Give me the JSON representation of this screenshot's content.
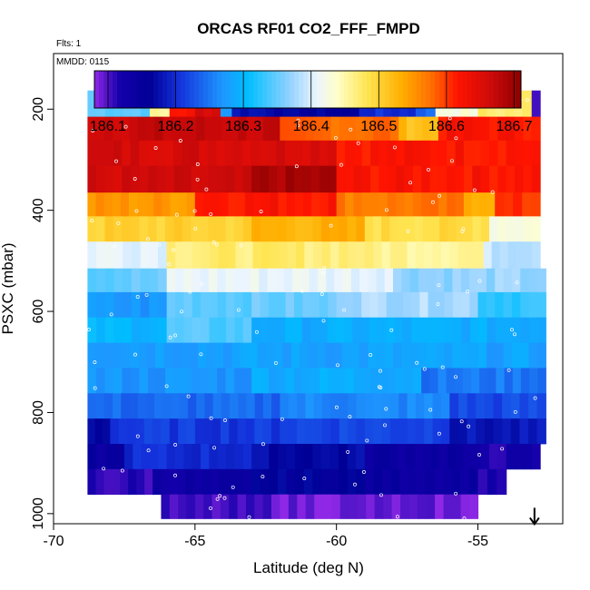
{
  "chart_data": {
    "type": "heatmap",
    "title": "ORCAS RF01 CO2_FFF_FMPD",
    "flights_note": "Flts: 1",
    "date_note": "MMDD: 0115",
    "xlabel": "Latitude (deg N)",
    "ylabel": "PSXC (mbar)",
    "xlim": [
      -70,
      -52
    ],
    "ylim": [
      1020,
      90
    ],
    "x_ticks": [
      -70,
      -65,
      -60,
      -55
    ],
    "x_tick_labels": [
      "-70",
      "-65",
      "-60",
      "-55"
    ],
    "y_ticks": [
      200,
      400,
      600,
      800,
      1000
    ],
    "y_tick_labels": [
      "200",
      "400",
      "600",
      "800",
      "1000"
    ],
    "colorbar": {
      "min": 186.08,
      "max": 186.71,
      "ticks": [
        186.1,
        186.2,
        186.3,
        186.4,
        186.5,
        186.6,
        186.7
      ],
      "tick_labels": [
        "186.1",
        "186.2",
        "186.3",
        "186.4",
        "186.5",
        "186.6",
        "186.7"
      ]
    },
    "grid": false,
    "marker": {
      "symbol": "down-arrow",
      "lat": -53.0,
      "pressure": 1010
    },
    "bands": [
      {
        "p_top": 163,
        "p_bot": 215,
        "lat_start": -68.8,
        "lat_end": -52.8,
        "segments": [
          {
            "lat_to": -66.6,
            "value": 186.35
          },
          {
            "lat_to": -65.9,
            "value": 186.45
          },
          {
            "lat_to": -65.0,
            "value": 186.62
          },
          {
            "lat_to": -64.1,
            "value": 186.66
          },
          {
            "lat_to": -63.7,
            "value": 186.28
          },
          {
            "lat_to": -62.2,
            "value": 186.18
          },
          {
            "lat_to": -59.2,
            "value": 186.16
          },
          {
            "lat_to": -57.2,
            "value": 186.2
          },
          {
            "lat_to": -56.5,
            "value": 186.24
          },
          {
            "lat_to": -55.0,
            "value": 186.43
          },
          {
            "lat_to": -53.1,
            "value": 186.47
          },
          {
            "lat_to": -52.8,
            "value": 186.1
          }
        ]
      },
      {
        "p_top": 215,
        "p_bot": 262,
        "lat_start": -68.8,
        "lat_end": -52.8,
        "segments": [
          {
            "lat_to": -62.0,
            "value": 186.67
          },
          {
            "lat_to": -57.8,
            "value": 186.58
          },
          {
            "lat_to": -56.4,
            "value": 186.52
          },
          {
            "lat_to": -52.8,
            "value": 186.62
          }
        ]
      },
      {
        "p_top": 262,
        "p_bot": 312,
        "lat_start": -68.8,
        "lat_end": -52.8,
        "segments": [
          {
            "lat_to": -60.0,
            "value": 186.66
          },
          {
            "lat_to": -52.8,
            "value": 186.62
          }
        ]
      },
      {
        "p_top": 312,
        "p_bot": 365,
        "lat_start": -68.8,
        "lat_end": -52.8,
        "segments": [
          {
            "lat_to": -63.0,
            "value": 186.66
          },
          {
            "lat_to": -60.0,
            "value": 186.69
          },
          {
            "lat_to": -55.5,
            "value": 186.62
          },
          {
            "lat_to": -52.8,
            "value": 186.62
          }
        ]
      },
      {
        "p_top": 365,
        "p_bot": 412,
        "lat_start": -68.8,
        "lat_end": -52.8,
        "segments": [
          {
            "lat_to": -65.0,
            "value": 186.55
          },
          {
            "lat_to": -60.0,
            "value": 186.62
          },
          {
            "lat_to": -55.5,
            "value": 186.57
          },
          {
            "lat_to": -54.4,
            "value": 186.54
          },
          {
            "lat_to": -52.8,
            "value": 186.6
          }
        ]
      },
      {
        "p_top": 412,
        "p_bot": 462,
        "lat_start": -68.8,
        "lat_end": -52.8,
        "segments": [
          {
            "lat_to": -63.0,
            "value": 186.5
          },
          {
            "lat_to": -59.0,
            "value": 186.53
          },
          {
            "lat_to": -54.6,
            "value": 186.49
          },
          {
            "lat_to": -52.8,
            "value": 186.43
          }
        ]
      },
      {
        "p_top": 462,
        "p_bot": 515,
        "lat_start": -68.8,
        "lat_end": -52.8,
        "segments": [
          {
            "lat_to": -66.0,
            "value": 186.41
          },
          {
            "lat_to": -59.0,
            "value": 186.47
          },
          {
            "lat_to": -54.8,
            "value": 186.46
          },
          {
            "lat_to": -52.8,
            "value": 186.39
          }
        ]
      },
      {
        "p_top": 515,
        "p_bot": 562,
        "lat_start": -68.8,
        "lat_end": -52.6,
        "segments": [
          {
            "lat_to": -66.0,
            "value": 186.35
          },
          {
            "lat_to": -58.0,
            "value": 186.41
          },
          {
            "lat_to": -52.6,
            "value": 186.37
          }
        ]
      },
      {
        "p_top": 562,
        "p_bot": 612,
        "lat_start": -68.8,
        "lat_end": -52.6,
        "segments": [
          {
            "lat_to": -66.0,
            "value": 186.27
          },
          {
            "lat_to": -60.0,
            "value": 186.35
          },
          {
            "lat_to": -55.0,
            "value": 186.38
          },
          {
            "lat_to": -52.6,
            "value": 186.33
          }
        ]
      },
      {
        "p_top": 612,
        "p_bot": 662,
        "lat_start": -68.8,
        "lat_end": -52.6,
        "segments": [
          {
            "lat_to": -66.0,
            "value": 186.3
          },
          {
            "lat_to": -63.0,
            "value": 186.34
          },
          {
            "lat_to": -52.6,
            "value": 186.29
          }
        ]
      },
      {
        "p_top": 662,
        "p_bot": 712,
        "lat_start": -68.8,
        "lat_end": -52.6,
        "segments": [
          {
            "lat_to": -52.6,
            "value": 186.28
          }
        ]
      },
      {
        "p_top": 712,
        "p_bot": 762,
        "lat_start": -68.8,
        "lat_end": -52.6,
        "segments": [
          {
            "lat_to": -63.0,
            "value": 186.27
          },
          {
            "lat_to": -57.0,
            "value": 186.29
          },
          {
            "lat_to": -52.6,
            "value": 186.25
          }
        ]
      },
      {
        "p_top": 762,
        "p_bot": 812,
        "lat_start": -68.8,
        "lat_end": -52.6,
        "segments": [
          {
            "lat_to": -62.0,
            "value": 186.24
          },
          {
            "lat_to": -56.0,
            "value": 186.26
          },
          {
            "lat_to": -52.6,
            "value": 186.22
          }
        ]
      },
      {
        "p_top": 812,
        "p_bot": 862,
        "lat_start": -68.8,
        "lat_end": -52.6,
        "segments": [
          {
            "lat_to": -68.0,
            "value": 186.17
          },
          {
            "lat_to": -62.0,
            "value": 186.21
          },
          {
            "lat_to": -56.0,
            "value": 186.22
          },
          {
            "lat_to": -52.6,
            "value": 186.18
          }
        ]
      },
      {
        "p_top": 862,
        "p_bot": 912,
        "lat_start": -68.8,
        "lat_end": -52.8,
        "segments": [
          {
            "lat_to": -67.5,
            "value": 186.14
          },
          {
            "lat_to": -63.0,
            "value": 186.2
          },
          {
            "lat_to": -59.0,
            "value": 186.17
          },
          {
            "lat_to": -55.5,
            "value": 186.14
          },
          {
            "lat_to": -52.8,
            "value": 186.12
          }
        ]
      },
      {
        "p_top": 912,
        "p_bot": 962,
        "lat_start": -68.8,
        "lat_end": -54.0,
        "segments": [
          {
            "lat_to": -66.5,
            "value": 186.11
          },
          {
            "lat_to": -63.0,
            "value": 186.13
          },
          {
            "lat_to": -59.0,
            "value": 186.16
          },
          {
            "lat_to": -55.0,
            "value": 186.14
          },
          {
            "lat_to": -54.0,
            "value": 186.12
          }
        ]
      },
      {
        "p_top": 962,
        "p_bot": 1010,
        "lat_start": -66.2,
        "lat_end": -55.0,
        "segments": [
          {
            "lat_to": -62.0,
            "value": 186.1
          },
          {
            "lat_to": -55.0,
            "value": 186.09
          }
        ]
      }
    ]
  }
}
